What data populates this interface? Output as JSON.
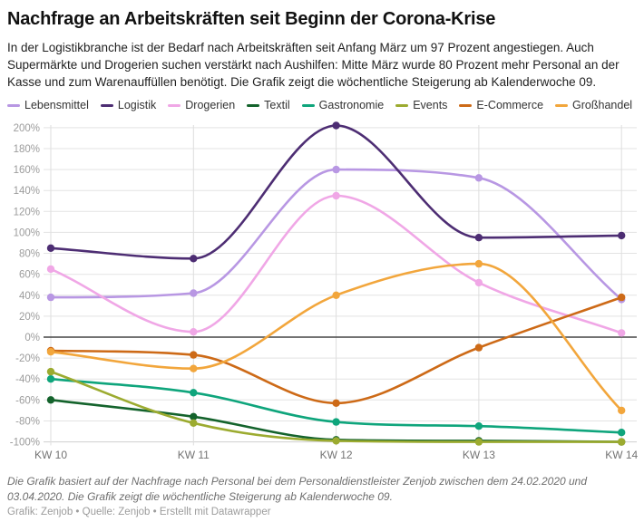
{
  "header": {
    "title": "Nachfrage an Arbeitskräften seit Beginn der Corona-Krise",
    "description": "In der Logistikbranche ist der Bedarf nach Arbeitskräften seit Anfang März um 97 Prozent angestiegen. Auch Supermärkte und Drogerien suchen verstärkt nach Aushilfen: Mitte März wurde 80 Prozent mehr Personal an der Kasse und zum Warenauffüllen benötigt. Die Grafik zeigt die wöchentliche Steigerung ab Kalenderwoche 09."
  },
  "chart_data": {
    "type": "line",
    "title": "Nachfrage an Arbeitskräften seit Beginn der Corona-Krise",
    "categories": [
      "KW 10",
      "KW 11",
      "KW 12",
      "KW 13",
      "KW 14"
    ],
    "series": [
      {
        "name": "Lebensmittel",
        "color": "#b897e3",
        "values": [
          38,
          42,
          160,
          152,
          36
        ]
      },
      {
        "name": "Logistik",
        "color": "#4d2d73",
        "values": [
          85,
          75,
          202,
          95,
          97
        ]
      },
      {
        "name": "Drogerien",
        "color": "#f0a7e6",
        "values": [
          65,
          5,
          135,
          52,
          4
        ]
      },
      {
        "name": "Textil",
        "color": "#14632c",
        "values": [
          -60,
          -76,
          -98,
          -99,
          -100
        ]
      },
      {
        "name": "Gastronomie",
        "color": "#0fa57c",
        "values": [
          -40,
          -53,
          -81,
          -85,
          -91
        ]
      },
      {
        "name": "Events",
        "color": "#9cab30",
        "values": [
          -33,
          -82,
          -99,
          -100,
          -100
        ]
      },
      {
        "name": "E-Commerce",
        "color": "#cd6a17",
        "values": [
          -13,
          -17,
          -63,
          -10,
          38
        ]
      },
      {
        "name": "Großhandel",
        "color": "#f2a63c",
        "values": [
          -14,
          -30,
          40,
          70,
          -70
        ]
      }
    ],
    "xlabel": "",
    "ylabel": "",
    "ylim": [
      -100,
      200
    ],
    "y_tick_step": 20,
    "y_tick_suffix": "%",
    "grid": true,
    "zero_line": true,
    "legend_position": "top"
  },
  "footer": {
    "note": "Die Grafik basiert auf der Nachfrage nach Personal bei dem Personaldienstleister Zenjob zwischen dem 24.02.2020 und 03.04.2020. Die Grafik zeigt die wöchentliche Steigerung ab Kalenderwoche 09.",
    "credit": "Grafik: Zenjob • Quelle: Zenjob • Erstellt mit Datawrapper"
  },
  "colors": {
    "grid": "#e3e3e3",
    "grid_vertical": "#dedede",
    "baseline": "#cfcfcf",
    "zero_line": "#454545",
    "y_tick_text": "#9c9c9c",
    "x_tick_text": "#737373"
  }
}
